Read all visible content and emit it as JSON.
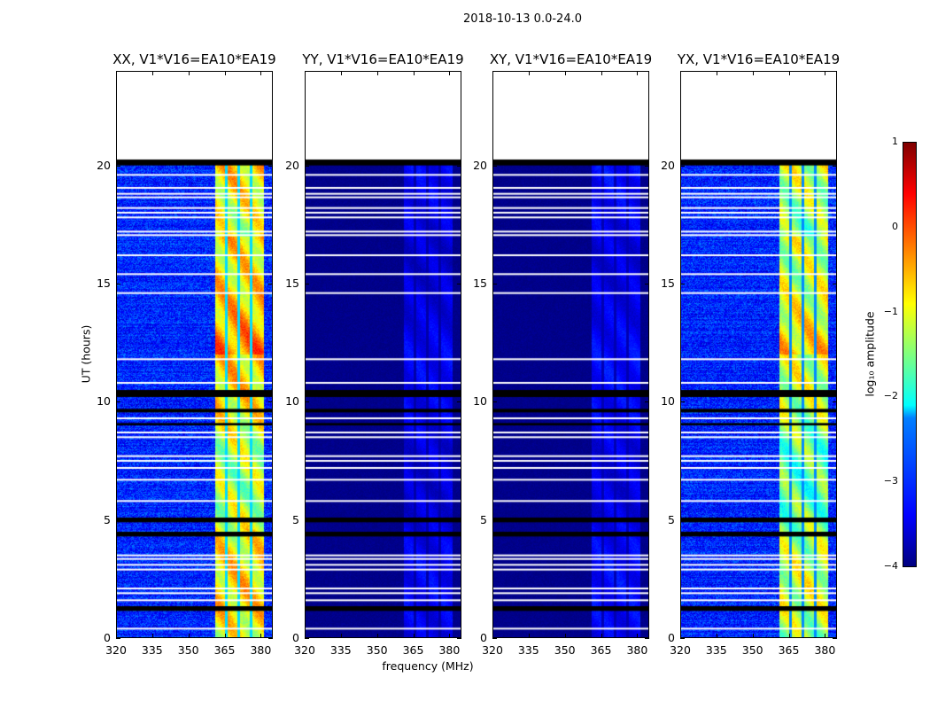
{
  "figure": {
    "title": "2018-10-13 0.0-24.0",
    "xlabel": "frequency (MHz)",
    "ylabel": "UT (hours)"
  },
  "colorbar": {
    "label": "log₁₀ amplitude",
    "ticks": [
      "1",
      "0",
      "−1",
      "−2",
      "−3",
      "−4"
    ],
    "range": [
      -4,
      1
    ],
    "colormap": "jet"
  },
  "chart_data": {
    "type": "heatmap",
    "x_range": [
      320,
      385
    ],
    "y_range": [
      0,
      24
    ],
    "x_ticks": [
      "320",
      "335",
      "350",
      "365",
      "380"
    ],
    "y_ticks": [
      "0",
      "5",
      "10",
      "15",
      "20"
    ],
    "data_extent_hours": [
      0,
      20.2
    ],
    "signal_band_MHz": [
      361,
      381
    ],
    "band_gaps_MHz": [
      365.5,
      370.6,
      375.8
    ],
    "flagged_black_hours": [
      [
        20.0,
        20.25
      ],
      [
        10.2,
        10.5
      ],
      [
        9.55,
        9.7
      ],
      [
        9.0,
        9.1
      ],
      [
        4.9,
        5.1
      ],
      [
        4.3,
        4.5
      ],
      [
        1.15,
        1.35
      ]
    ],
    "flagged_white_hours": [
      19.6,
      19.05,
      18.8,
      18.65,
      18.2,
      18.0,
      17.8,
      17.2,
      17.05,
      16.2,
      15.4,
      14.6,
      11.8,
      10.8,
      9.3,
      8.7,
      8.5,
      7.7,
      7.5,
      7.2,
      6.7,
      5.8,
      3.5,
      3.35,
      3.1,
      2.9,
      2.1,
      1.9,
      1.6,
      0.4
    ],
    "panels": [
      {
        "title": "XX, V1*V16=EA10*EA19",
        "background_log10": -3.2,
        "band_log10": -1.0
      },
      {
        "title": "YY, V1*V16=EA10*EA19",
        "background_log10": -3.95,
        "band_log10": -3.5
      },
      {
        "title": "XY, V1*V16=EA10*EA19",
        "background_log10": -3.95,
        "band_log10": -3.45
      },
      {
        "title": "YX, V1*V16=EA10*EA19",
        "background_log10": -3.2,
        "band_log10": -1.4
      }
    ]
  }
}
